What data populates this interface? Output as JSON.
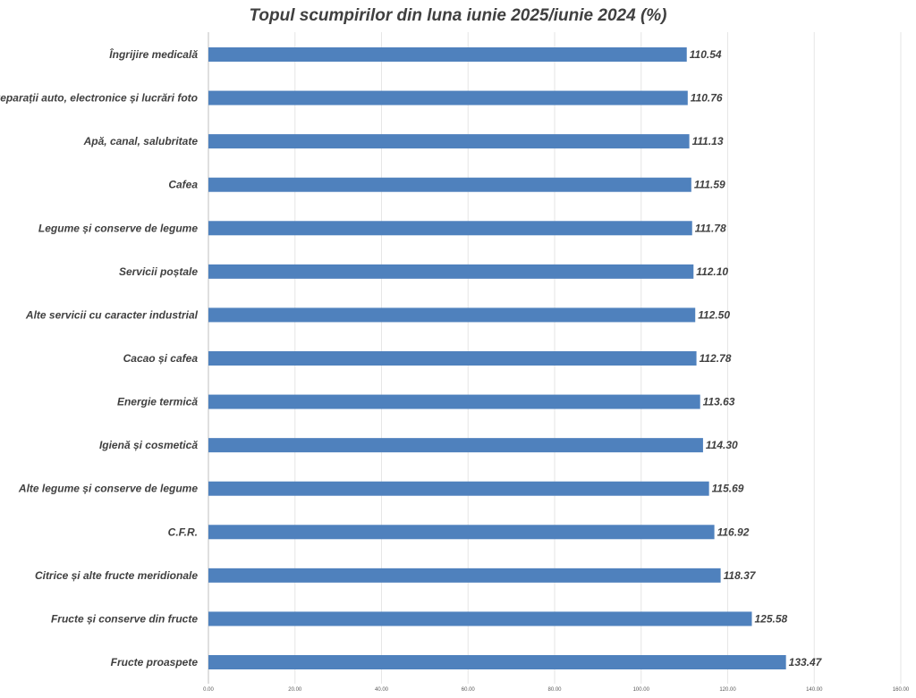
{
  "chart_data": {
    "type": "bar",
    "orientation": "horizontal",
    "title": "Topul scumpirilor din luna iunie 2025/iunie 2024 (%)",
    "xlabel": "",
    "ylabel": "",
    "xlim": [
      0,
      160
    ],
    "x_ticks": [
      "0.00",
      "20.00",
      "40.00",
      "60.00",
      "80.00",
      "100.00",
      "120.00",
      "140.00",
      "160.00"
    ],
    "x_tick_values": [
      0,
      20,
      40,
      60,
      80,
      100,
      120,
      140,
      160
    ],
    "grid": true,
    "bar_color": "#4f81bd",
    "categories": [
      "Îngrijire medicală",
      "Reparații auto, electronice și lucrări foto",
      "Apă, canal, salubritate",
      "Cafea",
      "Legume și conserve de legume",
      "Servicii poștale",
      "Alte servicii cu caracter industrial",
      "Cacao și cafea",
      "Energie termică",
      "Igienă și cosmetică",
      "Alte legume și conserve de legume",
      "C.F.R.",
      "Citrice și alte fructe meridionale",
      "Fructe și conserve din fructe",
      "Fructe proaspete"
    ],
    "values": [
      110.54,
      110.76,
      111.13,
      111.59,
      111.78,
      112.1,
      112.5,
      112.78,
      113.63,
      114.3,
      115.69,
      116.92,
      118.37,
      125.58,
      133.47
    ],
    "value_labels": [
      "110.54",
      "110.76",
      "111.13",
      "111.59",
      "111.78",
      "112.10",
      "112.50",
      "112.78",
      "113.63",
      "114.30",
      "115.69",
      "116.92",
      "118.37",
      "125.58",
      "133.47"
    ]
  }
}
